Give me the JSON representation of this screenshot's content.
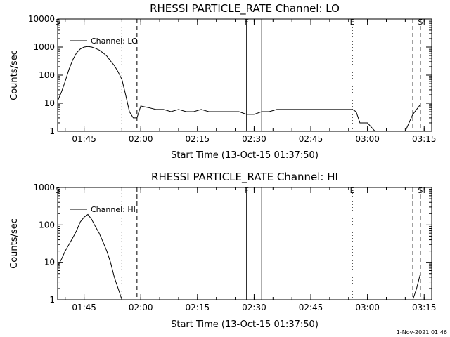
{
  "footer_text": "1-Nov-2021 01:46",
  "chart_data": [
    {
      "type": "line",
      "title": "RHESSI PARTICLE_RATE Channel: LO",
      "xlabel": "Start Time (13-Oct-15 01:37:50)",
      "ylabel": "Counts/sec",
      "yscale": "log",
      "xlim": [
        "01:38",
        "03:17"
      ],
      "ylim": [
        1,
        10000
      ],
      "x_ticks": [
        "01:45",
        "02:00",
        "02:15",
        "02:30",
        "02:45",
        "03:00",
        "03:15"
      ],
      "y_ticks": [
        "1",
        "10",
        "100",
        "1000",
        "10000"
      ],
      "legend": {
        "label": "Channel: LO",
        "placement": "top-left"
      },
      "markers": [
        {
          "time": "01:38",
          "label": "S",
          "style": "dashed"
        },
        {
          "time": "01:55",
          "label": "",
          "style": "dotted"
        },
        {
          "time": "01:59",
          "label": "",
          "style": "dashed"
        },
        {
          "time": "02:28",
          "label": "F",
          "style": "solid"
        },
        {
          "time": "02:32",
          "label": "",
          "style": "solid"
        },
        {
          "time": "02:56",
          "label": "E",
          "style": "dotted"
        },
        {
          "time": "03:12",
          "label": "",
          "style": "dashed"
        },
        {
          "time": "03:14",
          "label": "S",
          "style": "dashed"
        }
      ],
      "series": [
        {
          "x": [
            "01:38",
            "01:39",
            "01:40",
            "01:41",
            "01:42",
            "01:43",
            "01:44",
            "01:45",
            "01:46",
            "01:47",
            "01:48",
            "01:49",
            "01:50",
            "01:51",
            "01:52",
            "01:53",
            "01:54",
            "01:55",
            "01:56",
            "01:57",
            "01:58",
            "01:59",
            "02:00",
            "02:02",
            "02:04",
            "02:06",
            "02:08",
            "02:10",
            "02:12",
            "02:14",
            "02:16",
            "02:18",
            "02:20",
            "02:22",
            "02:24",
            "02:26",
            "02:28",
            "02:30",
            "02:32",
            "02:34",
            "02:36",
            "02:38",
            "02:40",
            "02:42",
            "02:44",
            "02:46",
            "02:48",
            "02:50",
            "02:52",
            "02:54",
            "02:56",
            "02:57",
            "02:58",
            "02:59",
            "03:00",
            "03:02",
            "03:04",
            "03:06",
            "03:08",
            "03:10",
            "03:12",
            "03:14"
          ],
          "y": [
            12,
            25,
            60,
            160,
            350,
            620,
            850,
            1000,
            1050,
            1000,
            900,
            780,
            620,
            480,
            320,
            220,
            130,
            70,
            20,
            5,
            3,
            3,
            8,
            7,
            6,
            6,
            5,
            6,
            5,
            5,
            6,
            5,
            5,
            5,
            5,
            5,
            4,
            4,
            5,
            5,
            6,
            6,
            6,
            6,
            6,
            6,
            6,
            6,
            6,
            6,
            6,
            5,
            2,
            2,
            2,
            1,
            1,
            1,
            1,
            1,
            4,
            9
          ]
        }
      ]
    },
    {
      "type": "line",
      "title": "RHESSI PARTICLE_RATE Channel: HI",
      "xlabel": "Start Time (13-Oct-15 01:37:50)",
      "ylabel": "Counts/sec",
      "yscale": "log",
      "xlim": [
        "01:38",
        "03:17"
      ],
      "ylim": [
        1,
        1000
      ],
      "x_ticks": [
        "01:45",
        "02:00",
        "02:15",
        "02:30",
        "02:45",
        "03:00",
        "03:15"
      ],
      "y_ticks": [
        "1",
        "10",
        "100",
        "1000"
      ],
      "legend": {
        "label": "Channel: HI",
        "placement": "top-left"
      },
      "markers": [
        {
          "time": "01:38",
          "label": "S",
          "style": "dashed"
        },
        {
          "time": "01:55",
          "label": "",
          "style": "dotted"
        },
        {
          "time": "01:59",
          "label": "",
          "style": "dashed"
        },
        {
          "time": "02:28",
          "label": "F",
          "style": "solid"
        },
        {
          "time": "02:32",
          "label": "",
          "style": "solid"
        },
        {
          "time": "02:56",
          "label": "E",
          "style": "dotted"
        },
        {
          "time": "03:12",
          "label": "",
          "style": "dashed"
        },
        {
          "time": "03:14",
          "label": "S",
          "style": "dashed"
        }
      ],
      "series": [
        {
          "x": [
            "01:38",
            "01:39",
            "01:40",
            "01:41",
            "01:42",
            "01:43",
            "01:44",
            "01:45",
            "01:46",
            "01:47",
            "01:48",
            "01:49",
            "01:50",
            "01:51",
            "01:52",
            "01:53",
            "01:54",
            "01:55",
            "03:12",
            "03:13",
            "03:14"
          ],
          "y": [
            8,
            12,
            20,
            30,
            45,
            70,
            120,
            160,
            190,
            140,
            90,
            60,
            35,
            20,
            10,
            4,
            2,
            1,
            1,
            2,
            5
          ]
        }
      ]
    }
  ]
}
